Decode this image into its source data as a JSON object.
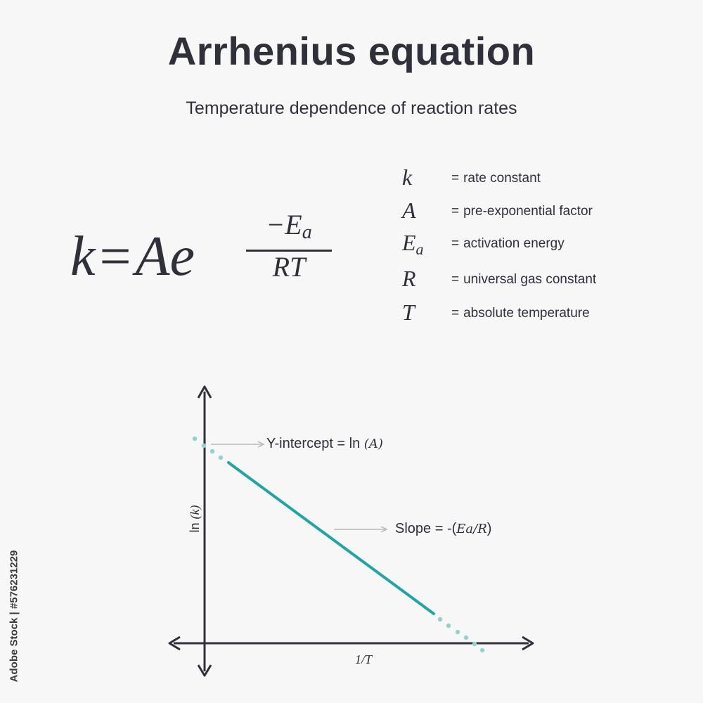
{
  "title": "Arrhenius equation",
  "subtitle": "Temperature dependence of reaction rates",
  "equation": {
    "lhs": "k",
    "sign": "=",
    "rhs_base": "Ae",
    "exponent_numerator": "−E",
    "exponent_numerator_sub": "a",
    "exponent_denominator": "RT"
  },
  "legend": [
    {
      "symbol": "k",
      "sub": "",
      "eq": "=",
      "description": "rate constant"
    },
    {
      "symbol": "A",
      "sub": "",
      "eq": "=",
      "description": "pre-exponential factor"
    },
    {
      "symbol": "E",
      "sub": "a",
      "eq": "=",
      "description": "activation energy"
    },
    {
      "symbol": "R",
      "sub": "",
      "eq": "=",
      "description": "universal gas constant"
    },
    {
      "symbol": "T",
      "sub": "",
      "eq": "=",
      "description": "absolute temperature"
    }
  ],
  "graph": {
    "y_axis_label_text": "ln ",
    "y_axis_label_math": "(k)",
    "x_axis_label": "1/T",
    "intercept_label_text": "Y-intercept = ln ",
    "intercept_label_math": "(A)",
    "slope_label_text": "Slope = -(",
    "slope_label_math": "Ea/R",
    "slope_label_close": ")",
    "colors": {
      "line": "#1fa5a5",
      "dots": "#8fd3d3",
      "axis": "#2f3039",
      "arrow": "#b7b7b7"
    }
  },
  "watermark_id": "Adobe Stock | #576231229"
}
